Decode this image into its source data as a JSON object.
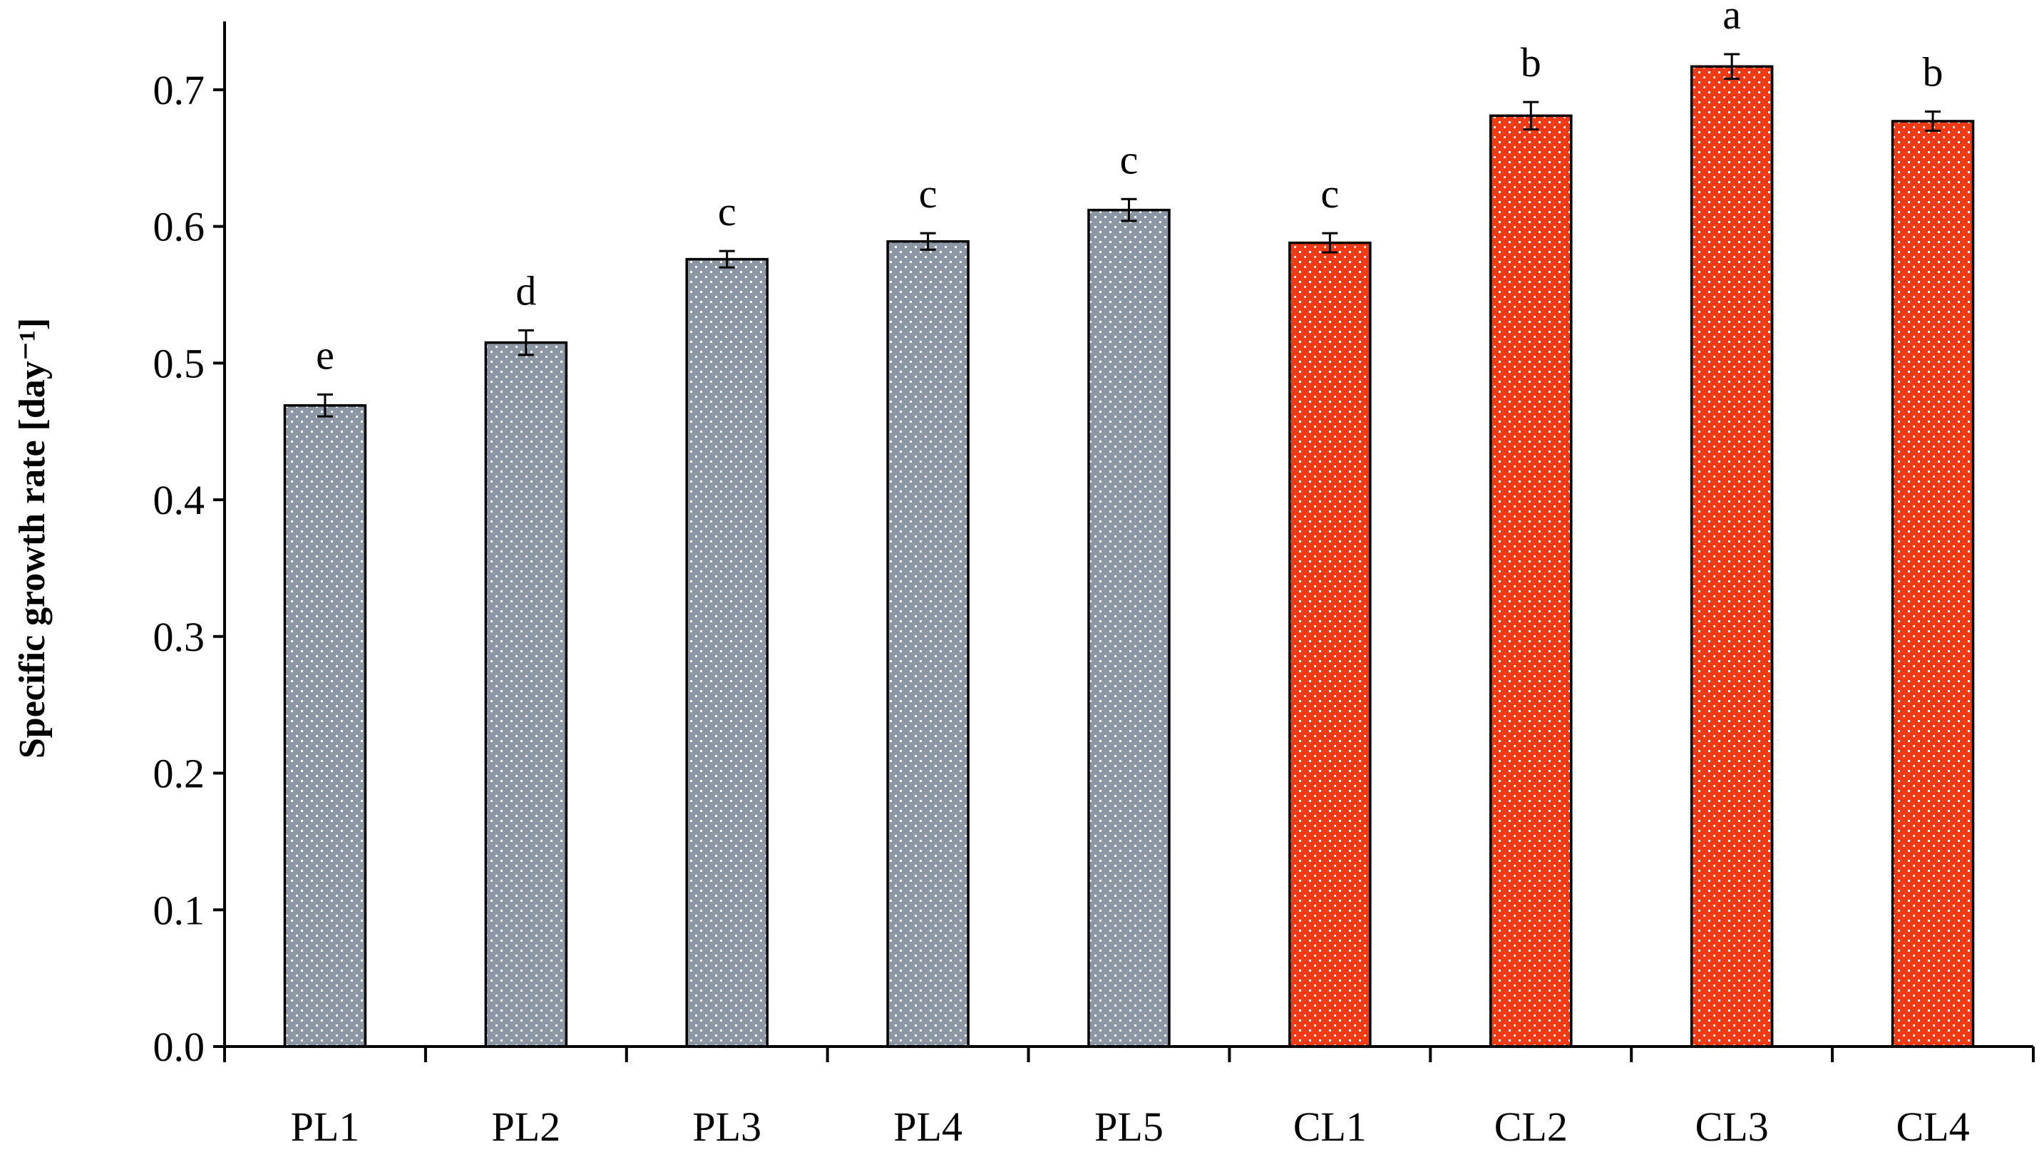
{
  "chart_data": {
    "type": "bar",
    "title": "",
    "xlabel": "",
    "ylabel": "Specific growth rate [day⁻¹]",
    "ylim": [
      0,
      0.75
    ],
    "yticks": [
      0.0,
      0.1,
      0.2,
      0.3,
      0.4,
      0.5,
      0.6,
      0.7
    ],
    "ytick_labels": [
      "0.0",
      "0.1",
      "0.2",
      "0.3",
      "0.4",
      "0.5",
      "0.6",
      "0.7"
    ],
    "grid": false,
    "legend": "none",
    "categories": [
      "PL1",
      "PL2",
      "PL3",
      "PL4",
      "PL5",
      "CL1",
      "CL2",
      "CL3",
      "CL4"
    ],
    "values": [
      0.469,
      0.515,
      0.576,
      0.589,
      0.612,
      0.588,
      0.681,
      0.717,
      0.677
    ],
    "errors": [
      0.008,
      0.009,
      0.006,
      0.006,
      0.008,
      0.007,
      0.01,
      0.009,
      0.007
    ],
    "significance_letters": [
      "e",
      "d",
      "c",
      "c",
      "c",
      "c",
      "b",
      "a",
      "b"
    ],
    "bar_colors": [
      "#8c97a6",
      "#8c97a6",
      "#8c97a6",
      "#8c97a6",
      "#8c97a6",
      "#f23a14",
      "#f23a14",
      "#f23a14",
      "#f23a14"
    ],
    "bar_pattern": "white dots"
  }
}
